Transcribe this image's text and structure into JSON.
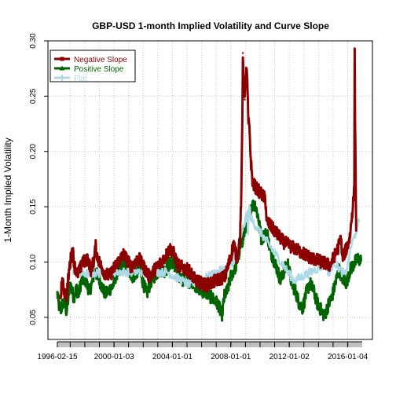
{
  "chart_data": {
    "type": "line",
    "title": "GBP-USD 1-month Implied Volatility and Curve Slope",
    "xlabel": "",
    "ylabel": "1-Month Implied Volatility",
    "ylim": [
      0.03,
      0.3
    ],
    "xlim": [
      "1996-02-15",
      "2016-12-30"
    ],
    "y_ticks": [
      0.05,
      0.1,
      0.15,
      0.2,
      0.25,
      0.3
    ],
    "y_tick_labels": [
      "0.05",
      "0.10",
      "0.15",
      "0.20",
      "0.25",
      "0.30"
    ],
    "x_ticks": [
      "1996-02-15",
      "2000-01-03",
      "2004-01-01",
      "2008-01-01",
      "2012-01-02",
      "2016-01-04"
    ],
    "x_tick_labels": [
      "1996-02-15",
      "2000-01-03",
      "2004-01-01",
      "2008-01-01",
      "2012-01-02",
      "2016-01-04"
    ],
    "grid": true,
    "legend_position": "top-left",
    "series": [
      {
        "name": "Negative Slope",
        "color": "#8b0000",
        "points": [
          [
            "1996-05-01",
            0.068
          ],
          [
            "1996-06-15",
            0.083
          ],
          [
            "1996-08-01",
            0.074
          ],
          [
            "1996-10-01",
            0.069
          ],
          [
            "1996-12-01",
            0.091
          ],
          [
            "1997-01-15",
            0.103
          ],
          [
            "1997-03-01",
            0.112
          ],
          [
            "1997-04-15",
            0.097
          ],
          [
            "1997-07-01",
            0.089
          ],
          [
            "1997-09-15",
            0.094
          ],
          [
            "1997-11-01",
            0.102
          ],
          [
            "1998-01-15",
            0.099
          ],
          [
            "1998-03-15",
            0.104
          ],
          [
            "1998-06-01",
            0.093
          ],
          [
            "1998-08-15",
            0.101
          ],
          [
            "1998-10-01",
            0.114
          ],
          [
            "1998-11-01",
            0.106
          ],
          [
            "1999-02-01",
            0.097
          ],
          [
            "1999-05-01",
            0.091
          ],
          [
            "1999-09-01",
            0.087
          ],
          [
            "2000-03-01",
            0.098
          ],
          [
            "2000-09-01",
            0.107
          ],
          [
            "2001-03-01",
            0.096
          ],
          [
            "2001-09-15",
            0.103
          ],
          [
            "2002-06-01",
            0.087
          ],
          [
            "2003-01-15",
            0.097
          ],
          [
            "2003-06-01",
            0.103
          ],
          [
            "2003-11-01",
            0.112
          ],
          [
            "2004-02-01",
            0.108
          ],
          [
            "2004-05-15",
            0.097
          ],
          [
            "2005-03-01",
            0.092
          ],
          [
            "2005-08-01",
            0.083
          ],
          [
            "2006-05-01",
            0.079
          ],
          [
            "2007-08-15",
            0.087
          ],
          [
            "2007-11-15",
            0.099
          ],
          [
            "2008-01-20",
            0.108
          ],
          [
            "2008-03-15",
            0.117
          ],
          [
            "2008-06-01",
            0.103
          ],
          [
            "2008-08-20",
            0.122
          ],
          [
            "2008-09-20",
            0.162
          ],
          [
            "2008-10-15",
            0.228
          ],
          [
            "2008-10-28",
            0.289
          ],
          [
            "2008-11-20",
            0.262
          ],
          [
            "2008-12-15",
            0.247
          ],
          [
            "2009-01-20",
            0.276
          ],
          [
            "2009-02-15",
            0.264
          ],
          [
            "2009-03-10",
            0.229
          ],
          [
            "2009-04-15",
            0.218
          ],
          [
            "2009-05-15",
            0.192
          ],
          [
            "2009-07-01",
            0.171
          ],
          [
            "2010-05-15",
            0.157
          ],
          [
            "2010-06-15",
            0.137
          ],
          [
            "2011-08-15",
            0.118
          ],
          [
            "2013-06-15",
            0.104
          ],
          [
            "2014-10-15",
            0.097
          ],
          [
            "2015-05-01",
            0.112
          ],
          [
            "2015-07-15",
            0.122
          ],
          [
            "2015-08-25",
            0.103
          ],
          [
            "2016-01-20",
            0.117
          ],
          [
            "2016-03-01",
            0.124
          ],
          [
            "2016-06-15",
            0.165
          ],
          [
            "2016-06-24",
            0.288
          ],
          [
            "2016-07-05",
            0.232
          ],
          [
            "2016-08-01",
            0.128
          ]
        ]
      },
      {
        "name": "Positive Slope",
        "color": "#006400",
        "points": [
          [
            "1996-02-15",
            0.072
          ],
          [
            "1996-03-20",
            0.061
          ],
          [
            "1996-05-20",
            0.057
          ],
          [
            "1996-07-01",
            0.063
          ],
          [
            "1996-08-20",
            0.062
          ],
          [
            "1996-10-01",
            0.055
          ],
          [
            "1996-11-15",
            0.067
          ],
          [
            "1997-01-01",
            0.081
          ],
          [
            "1997-02-15",
            0.074
          ],
          [
            "1997-04-01",
            0.068
          ],
          [
            "1997-06-01",
            0.076
          ],
          [
            "1997-08-01",
            0.071
          ],
          [
            "1997-10-01",
            0.082
          ],
          [
            "1998-01-01",
            0.085
          ],
          [
            "1998-03-01",
            0.079
          ],
          [
            "1998-05-01",
            0.074
          ],
          [
            "1998-07-01",
            0.081
          ],
          [
            "1998-09-01",
            0.092
          ],
          [
            "1998-12-01",
            0.087
          ],
          [
            "1999-03-01",
            0.078
          ],
          [
            "1999-06-01",
            0.071
          ],
          [
            "1999-09-01",
            0.075
          ],
          [
            "1999-12-01",
            0.078
          ],
          [
            "2000-03-01",
            0.089
          ],
          [
            "2000-06-01",
            0.096
          ],
          [
            "2000-10-01",
            0.098
          ],
          [
            "2001-01-01",
            0.093
          ],
          [
            "2001-05-01",
            0.086
          ],
          [
            "2001-09-15",
            0.094
          ],
          [
            "2002-01-01",
            0.081
          ],
          [
            "2002-04-01",
            0.071
          ],
          [
            "2002-07-01",
            0.082
          ],
          [
            "2002-10-01",
            0.087
          ],
          [
            "2003-01-01",
            0.091
          ],
          [
            "2003-04-01",
            0.093
          ],
          [
            "2003-07-01",
            0.092
          ],
          [
            "2003-10-01",
            0.097
          ],
          [
            "2004-01-01",
            0.101
          ],
          [
            "2004-04-01",
            0.093
          ],
          [
            "2004-07-01",
            0.086
          ],
          [
            "2004-10-01",
            0.084
          ],
          [
            "2005-01-01",
            0.081
          ],
          [
            "2005-05-01",
            0.083
          ],
          [
            "2005-09-01",
            0.078
          ],
          [
            "2006-01-01",
            0.074
          ],
          [
            "2006-05-01",
            0.072
          ],
          [
            "2006-09-01",
            0.068
          ],
          [
            "2006-12-01",
            0.065
          ],
          [
            "2007-03-01",
            0.061
          ],
          [
            "2007-05-20",
            0.051
          ],
          [
            "2007-08-01",
            0.071
          ],
          [
            "2007-10-01",
            0.073
          ],
          [
            "2008-01-01",
            0.087
          ],
          [
            "2008-05-01",
            0.096
          ],
          [
            "2009-06-01",
            0.151
          ],
          [
            "2009-09-01",
            0.152
          ],
          [
            "2009-12-01",
            0.138
          ],
          [
            "2010-02-01",
            0.121
          ],
          [
            "2010-04-01",
            0.124
          ],
          [
            "2010-07-01",
            0.126
          ],
          [
            "2010-09-01",
            0.112
          ],
          [
            "2010-12-01",
            0.103
          ],
          [
            "2011-03-01",
            0.094
          ],
          [
            "2011-06-01",
            0.083
          ],
          [
            "2011-09-01",
            0.093
          ],
          [
            "2011-12-01",
            0.098
          ],
          [
            "2012-03-01",
            0.081
          ],
          [
            "2012-06-01",
            0.074
          ],
          [
            "2012-09-01",
            0.063
          ],
          [
            "2012-12-01",
            0.058
          ],
          [
            "2013-03-01",
            0.072
          ],
          [
            "2013-06-01",
            0.081
          ],
          [
            "2013-09-01",
            0.074
          ],
          [
            "2013-12-01",
            0.063
          ],
          [
            "2014-03-01",
            0.057
          ],
          [
            "2014-06-01",
            0.051
          ],
          [
            "2014-09-01",
            0.061
          ],
          [
            "2014-12-01",
            0.068
          ],
          [
            "2015-03-01",
            0.081
          ],
          [
            "2015-06-01",
            0.093
          ],
          [
            "2015-09-01",
            0.085
          ],
          [
            "2015-12-01",
            0.081
          ],
          [
            "2016-03-01",
            0.093
          ],
          [
            "2016-09-01",
            0.103
          ],
          [
            "2016-12-01",
            0.101
          ]
        ]
      },
      {
        "name": "Flat",
        "color": "#add8e6",
        "points": [
          [
            "1997-03-15",
            0.092
          ],
          [
            "1997-05-01",
            0.089
          ],
          [
            "2000-04-15",
            0.091
          ],
          [
            "2003-08-15",
            0.091
          ],
          [
            "2005-03-15",
            0.079
          ],
          [
            "2008-02-01",
            0.097
          ],
          [
            "2009-02-20",
            0.144
          ],
          [
            "2009-03-01",
            0.129
          ],
          [
            "2009-04-10",
            0.151
          ],
          [
            "2009-05-20",
            0.139
          ],
          [
            "2012-05-01",
            0.083
          ],
          [
            "2014-07-01",
            0.098
          ],
          [
            "2014-10-01",
            0.088
          ],
          [
            "2015-01-15",
            0.101
          ],
          [
            "2015-08-10",
            0.091
          ],
          [
            "2015-11-01",
            0.089
          ],
          [
            "2016-02-15",
            0.104
          ],
          [
            "2016-03-15",
            0.113
          ],
          [
            "2016-09-15",
            0.133
          ],
          [
            "2016-10-10",
            0.137
          ]
        ]
      }
    ]
  }
}
